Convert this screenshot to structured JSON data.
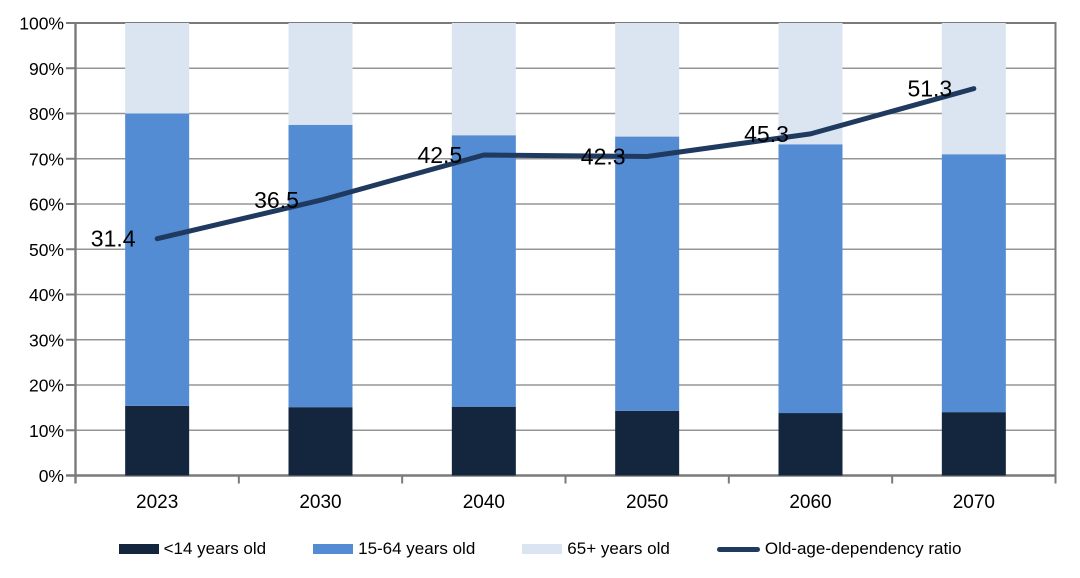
{
  "chart_data": {
    "type": "bar",
    "subtype": "stacked-bar-with-line",
    "categories": [
      "2023",
      "2030",
      "2040",
      "2050",
      "2060",
      "2070"
    ],
    "stacked": true,
    "grid": true,
    "legend_position": "bottom",
    "y_axis": {
      "min": 0,
      "max": 100,
      "tick_step": 10,
      "tick_labels": [
        "0%",
        "10%",
        "20%",
        "30%",
        "40%",
        "50%",
        "60%",
        "70%",
        "80%",
        "90%",
        "100%"
      ]
    },
    "secondary_axis": {
      "min": 0,
      "max": 60,
      "visible": false
    },
    "series": [
      {
        "name": "<14 years old",
        "type": "bar",
        "color": "#13263d",
        "values": [
          15.4,
          15.1,
          15.2,
          14.3,
          13.8,
          14.0
        ]
      },
      {
        "name": "15-64 years old",
        "type": "bar",
        "color": "#548cd4",
        "values": [
          64.6,
          62.4,
          60.0,
          60.6,
          59.4,
          57.0
        ]
      },
      {
        "name": "65+ years old",
        "type": "bar",
        "color": "#dbe5f1",
        "values": [
          20.0,
          22.5,
          24.8,
          25.1,
          26.8,
          29.0
        ]
      }
    ],
    "line_series": {
      "name": "Old-age-dependency ratio",
      "type": "line",
      "color": "#1f3a5e",
      "axis": "secondary",
      "values": [
        31.4,
        36.5,
        42.5,
        42.3,
        45.3,
        51.3
      ],
      "data_labels": [
        "31.4",
        "36.5",
        "42.5",
        "42.3",
        "45.3",
        "51.3"
      ]
    }
  },
  "colors": {
    "grid": "#969696",
    "axis": "#7a7a7a",
    "text": "#000000",
    "background": "#ffffff"
  }
}
